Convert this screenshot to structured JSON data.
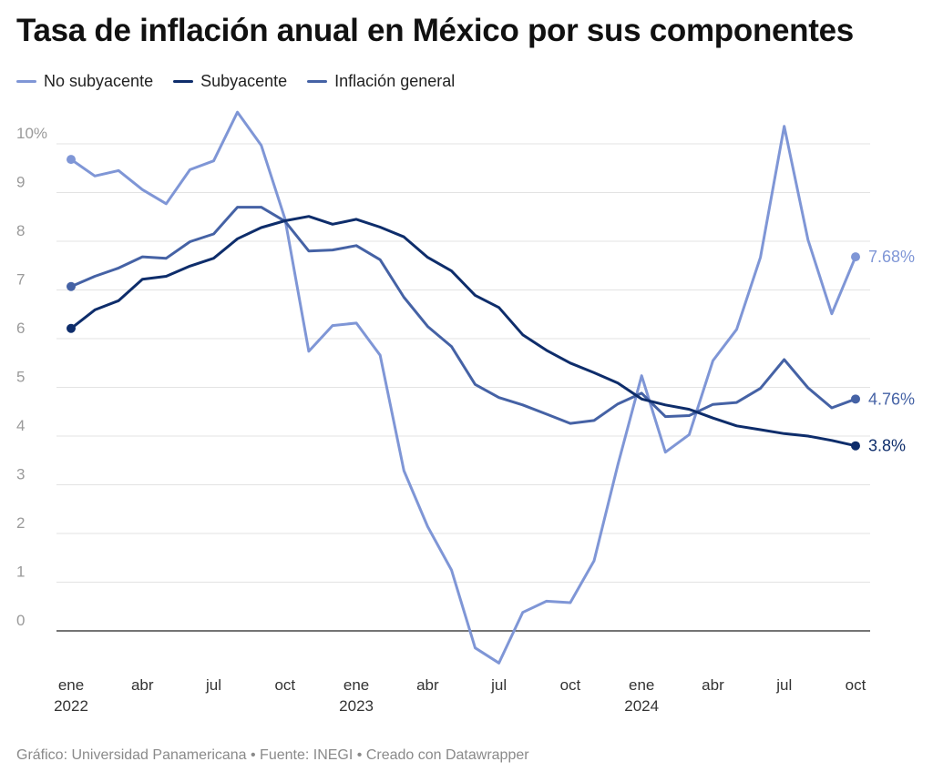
{
  "title": "Tasa de inflación anual en México por sus componentes",
  "footer": "Gráfico: Universidad Panamericana • Fuente: INEGI • Creado con Datawrapper",
  "legend": [
    {
      "label": "No subyacente",
      "color": "#7f96d6"
    },
    {
      "label": "Subyacente",
      "color": "#0e2d6b"
    },
    {
      "label": "Inflación general",
      "color": "#4562a5"
    }
  ],
  "chart_data": {
    "type": "line",
    "title": "Tasa de inflación anual en México por sus componentes",
    "xlabel": "",
    "ylabel": "",
    "ylim": [
      -0.7,
      10.8
    ],
    "y_ticks": [
      "0",
      "1",
      "2",
      "3",
      "4",
      "5",
      "6",
      "7",
      "8",
      "9",
      "10%"
    ],
    "y_tick_values": [
      0,
      1,
      2,
      3,
      4,
      5,
      6,
      7,
      8,
      9,
      10
    ],
    "x_ticks": [
      {
        "index": 0,
        "label": "ene",
        "year": "2022"
      },
      {
        "index": 3,
        "label": "abr",
        "year": ""
      },
      {
        "index": 6,
        "label": "jul",
        "year": ""
      },
      {
        "index": 9,
        "label": "oct",
        "year": ""
      },
      {
        "index": 12,
        "label": "ene",
        "year": "2023"
      },
      {
        "index": 15,
        "label": "abr",
        "year": ""
      },
      {
        "index": 18,
        "label": "jul",
        "year": ""
      },
      {
        "index": 21,
        "label": "oct",
        "year": ""
      },
      {
        "index": 24,
        "label": "ene",
        "year": "2024"
      },
      {
        "index": 27,
        "label": "abr",
        "year": ""
      },
      {
        "index": 30,
        "label": "jul",
        "year": ""
      },
      {
        "index": 33,
        "label": "oct",
        "year": ""
      }
    ],
    "x": [
      "2022-01",
      "2022-02",
      "2022-03",
      "2022-04",
      "2022-05",
      "2022-06",
      "2022-07",
      "2022-08",
      "2022-09",
      "2022-10",
      "2022-11",
      "2022-12",
      "2023-01",
      "2023-02",
      "2023-03",
      "2023-04",
      "2023-05",
      "2023-06",
      "2023-07",
      "2023-08",
      "2023-09",
      "2023-10",
      "2023-11",
      "2023-12",
      "2024-01",
      "2024-02",
      "2024-03",
      "2024-04",
      "2024-05",
      "2024-06",
      "2024-07",
      "2024-08",
      "2024-09",
      "2024-10"
    ],
    "grid": true,
    "legend_position": "top-left",
    "series": [
      {
        "name": "No subyacente",
        "color": "#7f96d6",
        "end_label": "7.68%",
        "values": [
          9.68,
          9.34,
          9.45,
          9.06,
          8.77,
          9.47,
          9.65,
          10.65,
          9.97,
          8.46,
          5.74,
          6.27,
          6.32,
          5.66,
          3.29,
          2.14,
          1.25,
          -0.35,
          -0.66,
          0.38,
          0.61,
          0.58,
          1.44,
          3.41,
          5.24,
          3.67,
          4.03,
          5.55,
          6.19,
          7.67,
          10.36,
          8.03,
          6.51,
          7.68
        ]
      },
      {
        "name": "Subyacente",
        "color": "#0e2d6b",
        "end_label": "3.8%",
        "values": [
          6.21,
          6.59,
          6.78,
          7.22,
          7.28,
          7.49,
          7.65,
          8.05,
          8.28,
          8.42,
          8.51,
          8.35,
          8.45,
          8.29,
          8.09,
          7.67,
          7.39,
          6.89,
          6.64,
          6.08,
          5.76,
          5.5,
          5.3,
          5.09,
          4.76,
          4.64,
          4.55,
          4.37,
          4.21,
          4.13,
          4.05,
          4.0,
          3.91,
          3.8
        ]
      },
      {
        "name": "Inflación general",
        "color": "#4562a5",
        "end_label": "4.76%",
        "values": [
          7.07,
          7.28,
          7.45,
          7.68,
          7.65,
          7.99,
          8.15,
          8.7,
          8.7,
          8.41,
          7.8,
          7.82,
          7.91,
          7.62,
          6.85,
          6.25,
          5.84,
          5.06,
          4.79,
          4.64,
          4.45,
          4.26,
          4.32,
          4.66,
          4.88,
          4.4,
          4.42,
          4.65,
          4.69,
          4.98,
          5.57,
          4.99,
          4.58,
          4.76
        ]
      }
    ]
  }
}
